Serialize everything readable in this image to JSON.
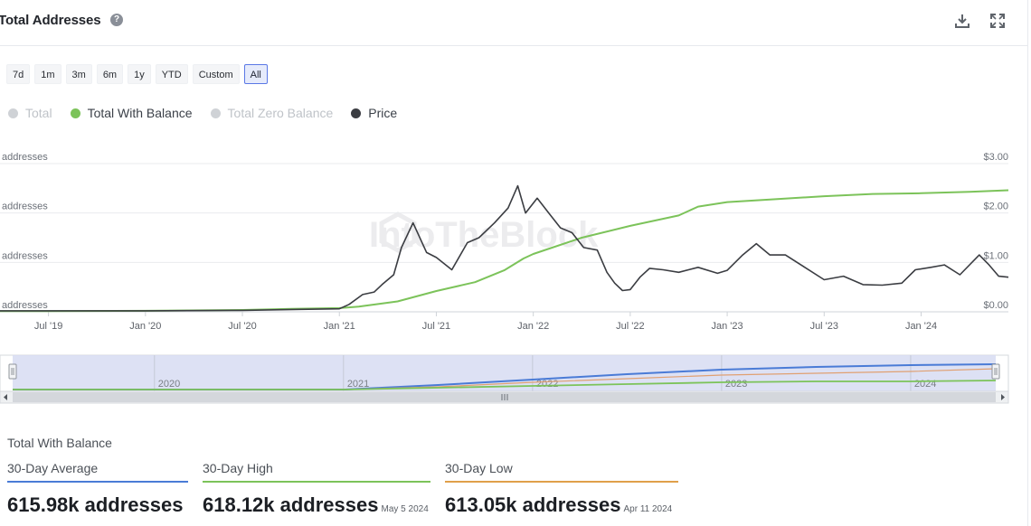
{
  "header": {
    "title": "Total Addresses",
    "help_glyph": "?",
    "download_icon": "download-icon",
    "fullscreen_icon": "fullscreen-icon"
  },
  "range_buttons": [
    "7d",
    "1m",
    "3m",
    "6m",
    "1y",
    "YTD",
    "Custom",
    "All"
  ],
  "active_range": "All",
  "legend": [
    {
      "label": "Total",
      "color": "#cfd2d6",
      "active": false
    },
    {
      "label": "Total With Balance",
      "color": "#7cc35a",
      "active": true
    },
    {
      "label": "Total Zero Balance",
      "color": "#cfd2d6",
      "active": false
    },
    {
      "label": "Price",
      "color": "#3b3d42",
      "active": true
    }
  ],
  "watermark": "IntoTheBlock",
  "chart_data": {
    "type": "line",
    "x_ticks": [
      "Jul '19",
      "Jan '20",
      "Jul '20",
      "Jan '21",
      "Jul '21",
      "Jan '22",
      "Jul '22",
      "Jan '23",
      "Jul '23",
      "Jan '24"
    ],
    "y_left_ticks": [
      "addresses",
      "addresses",
      "addresses",
      "addresses"
    ],
    "y_right_ticks": [
      "$0.00",
      "$1.00",
      "$2.00",
      "$3.00"
    ],
    "y_right_range": [
      0,
      3
    ],
    "x_range_years": [
      2019.25,
      2024.45
    ],
    "colors": {
      "balance": "#7cc35a",
      "price": "#3b3d42",
      "navigator_blue": "#4a7bd6",
      "navigator_orange": "#e0a072"
    },
    "series": [
      {
        "name": "Total With Balance",
        "axis": "left_fraction",
        "points": [
          [
            2019.25,
            0.005
          ],
          [
            2019.5,
            0.005
          ],
          [
            2020.0,
            0.007
          ],
          [
            2020.5,
            0.012
          ],
          [
            2020.75,
            0.02
          ],
          [
            2021.0,
            0.025
          ],
          [
            2021.1,
            0.035
          ],
          [
            2021.3,
            0.07
          ],
          [
            2021.5,
            0.14
          ],
          [
            2021.7,
            0.2
          ],
          [
            2021.85,
            0.28
          ],
          [
            2021.95,
            0.36
          ],
          [
            2022.0,
            0.39
          ],
          [
            2022.25,
            0.5
          ],
          [
            2022.5,
            0.58
          ],
          [
            2022.75,
            0.65
          ],
          [
            2022.85,
            0.71
          ],
          [
            2023.0,
            0.74
          ],
          [
            2023.25,
            0.76
          ],
          [
            2023.5,
            0.78
          ],
          [
            2023.75,
            0.795
          ],
          [
            2024.0,
            0.8
          ],
          [
            2024.25,
            0.81
          ],
          [
            2024.45,
            0.82
          ]
        ]
      },
      {
        "name": "Price",
        "axis": "right",
        "points": [
          [
            2019.25,
            0.02
          ],
          [
            2019.5,
            0.02
          ],
          [
            2020.0,
            0.02
          ],
          [
            2020.5,
            0.03
          ],
          [
            2020.8,
            0.05
          ],
          [
            2021.0,
            0.06
          ],
          [
            2021.05,
            0.15
          ],
          [
            2021.12,
            0.35
          ],
          [
            2021.18,
            0.4
          ],
          [
            2021.22,
            0.55
          ],
          [
            2021.28,
            0.75
          ],
          [
            2021.32,
            1.3
          ],
          [
            2021.38,
            1.8
          ],
          [
            2021.45,
            1.2
          ],
          [
            2021.5,
            1.1
          ],
          [
            2021.58,
            0.85
          ],
          [
            2021.66,
            1.4
          ],
          [
            2021.72,
            1.5
          ],
          [
            2021.8,
            1.8
          ],
          [
            2021.87,
            2.1
          ],
          [
            2021.92,
            2.55
          ],
          [
            2021.96,
            2.0
          ],
          [
            2022.02,
            2.3
          ],
          [
            2022.08,
            2.0
          ],
          [
            2022.14,
            1.7
          ],
          [
            2022.2,
            1.6
          ],
          [
            2022.26,
            1.3
          ],
          [
            2022.33,
            1.25
          ],
          [
            2022.38,
            0.8
          ],
          [
            2022.42,
            0.58
          ],
          [
            2022.46,
            0.43
          ],
          [
            2022.5,
            0.45
          ],
          [
            2022.55,
            0.7
          ],
          [
            2022.6,
            0.88
          ],
          [
            2022.67,
            0.85
          ],
          [
            2022.75,
            0.8
          ],
          [
            2022.85,
            0.9
          ],
          [
            2022.95,
            0.78
          ],
          [
            2023.0,
            0.84
          ],
          [
            2023.08,
            1.15
          ],
          [
            2023.15,
            1.38
          ],
          [
            2023.22,
            1.15
          ],
          [
            2023.3,
            1.15
          ],
          [
            2023.4,
            0.9
          ],
          [
            2023.5,
            0.65
          ],
          [
            2023.6,
            0.72
          ],
          [
            2023.7,
            0.55
          ],
          [
            2023.8,
            0.54
          ],
          [
            2023.9,
            0.58
          ],
          [
            2023.97,
            0.85
          ],
          [
            2024.05,
            0.9
          ],
          [
            2024.12,
            0.95
          ],
          [
            2024.2,
            0.75
          ],
          [
            2024.3,
            1.15
          ],
          [
            2024.35,
            0.95
          ],
          [
            2024.4,
            0.72
          ],
          [
            2024.45,
            0.7
          ]
        ]
      }
    ],
    "navigator_labels": [
      "2020",
      "2021",
      "2022",
      "2023",
      "2024"
    ]
  },
  "stats": {
    "title": "Total With Balance",
    "items": [
      {
        "label": "30-Day Average",
        "value": "615.98k addresses",
        "date": "",
        "color": "#4a7bd6"
      },
      {
        "label": "30-Day High",
        "value": "618.12k addresses",
        "date": "May 5 2024",
        "color": "#7cc35a"
      },
      {
        "label": "30-Day Low",
        "value": "613.05k addresses",
        "date": "Apr 11 2024",
        "color": "#e0a04a"
      }
    ]
  }
}
